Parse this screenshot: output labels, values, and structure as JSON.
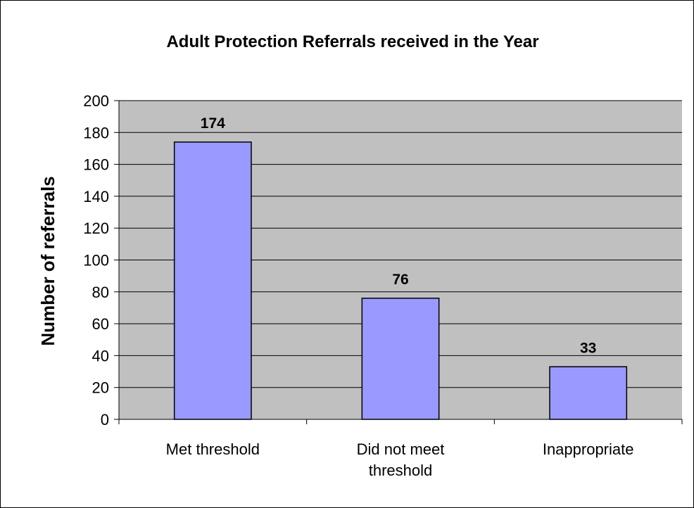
{
  "chart_data": {
    "type": "bar",
    "title": "Adult Protection Referrals received in the Year",
    "xlabel": "",
    "ylabel": "Number of referrals",
    "categories": [
      [
        "Met threshold"
      ],
      [
        "Did not meet",
        "threshold"
      ],
      [
        "Inappropriate"
      ]
    ],
    "values": [
      174,
      76,
      33
    ],
    "data_labels": [
      "174",
      "76",
      "33"
    ],
    "ylim": [
      0,
      200
    ],
    "ytick_step": 20,
    "grid": true,
    "legend": "none",
    "colors": {
      "bar_fill": "#9999ff",
      "bar_stroke": "#000000",
      "plot_background": "#c0c0c0",
      "gridline": "#000000"
    }
  }
}
